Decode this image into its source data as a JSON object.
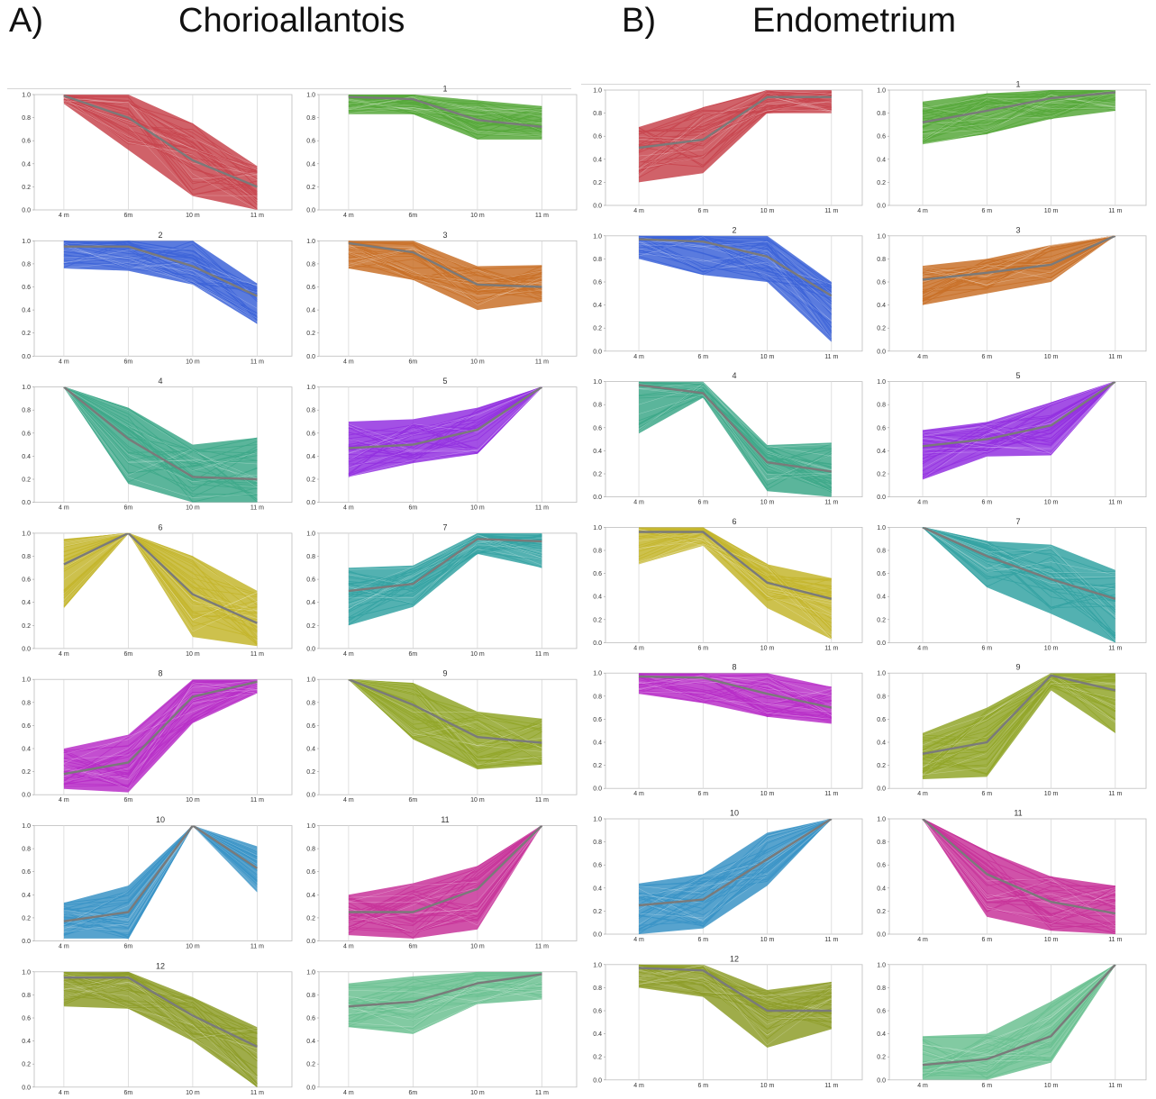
{
  "panels": [
    {
      "letter": "A)",
      "title": "Chorioallantois"
    },
    {
      "letter": "B)",
      "title": "Endometrium"
    }
  ],
  "chart_data": [
    {
      "type": "line",
      "panel": "A) Chorioallantois",
      "x_ticks": [
        "4 m",
        "6m",
        "10 m",
        "11 m"
      ],
      "y_ticks": [
        "0.0",
        "0.2",
        "0.4",
        "0.6",
        "0.8",
        "1.0"
      ],
      "ylim": [
        0,
        1
      ],
      "grid": "vertical",
      "clusters": [
        {
          "label": "",
          "color": "#c8464f",
          "mean": [
            0.99,
            0.8,
            0.43,
            0.2
          ],
          "lower": [
            0.92,
            0.52,
            0.12,
            0.0
          ],
          "upper": [
            1.0,
            1.0,
            0.75,
            0.38
          ]
        },
        {
          "label": "1",
          "color": "#57a83b",
          "mean": [
            0.98,
            0.96,
            0.78,
            0.72
          ],
          "lower": [
            0.83,
            0.83,
            0.61,
            0.61
          ],
          "upper": [
            1.0,
            1.0,
            0.95,
            0.9
          ]
        },
        {
          "label": "2",
          "color": "#3d64d8",
          "mean": [
            0.95,
            0.95,
            0.78,
            0.52
          ],
          "lower": [
            0.76,
            0.74,
            0.62,
            0.28
          ],
          "upper": [
            1.0,
            1.0,
            1.0,
            0.63
          ]
        },
        {
          "label": "3",
          "color": "#c97129",
          "mean": [
            0.98,
            0.9,
            0.62,
            0.6
          ],
          "lower": [
            0.76,
            0.66,
            0.4,
            0.47
          ],
          "upper": [
            1.0,
            1.0,
            0.78,
            0.79
          ]
        },
        {
          "label": "4",
          "color": "#3ea88a",
          "mean": [
            1.0,
            0.55,
            0.22,
            0.2
          ],
          "lower": [
            1.0,
            0.16,
            0.0,
            0.0
          ],
          "upper": [
            1.0,
            0.82,
            0.5,
            0.56
          ]
        },
        {
          "label": "5",
          "color": "#9331e0",
          "mean": [
            0.47,
            0.5,
            0.63,
            1.0
          ],
          "lower": [
            0.22,
            0.34,
            0.42,
            1.0
          ],
          "upper": [
            0.7,
            0.72,
            0.82,
            1.0
          ]
        },
        {
          "label": "6",
          "color": "#c4b62e",
          "mean": [
            0.73,
            1.0,
            0.47,
            0.22
          ],
          "lower": [
            0.35,
            1.0,
            0.1,
            0.02
          ],
          "upper": [
            0.95,
            1.0,
            0.8,
            0.5
          ]
        },
        {
          "label": "7",
          "color": "#35a3a3",
          "mean": [
            0.5,
            0.56,
            0.95,
            0.93
          ],
          "lower": [
            0.2,
            0.36,
            0.82,
            0.7
          ],
          "upper": [
            0.7,
            0.72,
            1.0,
            1.0
          ]
        },
        {
          "label": "8",
          "color": "#b82fc8",
          "mean": [
            0.18,
            0.28,
            0.85,
            0.98
          ],
          "lower": [
            0.05,
            0.02,
            0.62,
            0.88
          ],
          "upper": [
            0.4,
            0.52,
            1.0,
            1.0
          ]
        },
        {
          "label": "9",
          "color": "#92a62a",
          "mean": [
            1.0,
            0.78,
            0.5,
            0.45
          ],
          "lower": [
            1.0,
            0.48,
            0.22,
            0.26
          ],
          "upper": [
            1.0,
            0.97,
            0.72,
            0.66
          ]
        },
        {
          "label": "10",
          "color": "#3a93c6",
          "mean": [
            0.17,
            0.25,
            1.0,
            0.63
          ],
          "lower": [
            0.02,
            0.02,
            1.0,
            0.42
          ],
          "upper": [
            0.33,
            0.48,
            1.0,
            0.82
          ]
        },
        {
          "label": "11",
          "color": "#c8349a",
          "mean": [
            0.25,
            0.25,
            0.45,
            1.0
          ],
          "lower": [
            0.05,
            0.02,
            0.1,
            1.0
          ],
          "upper": [
            0.4,
            0.5,
            0.65,
            1.0
          ]
        },
        {
          "label": "12",
          "color": "#8e9d2a",
          "mean": [
            0.95,
            0.95,
            0.62,
            0.35
          ],
          "lower": [
            0.7,
            0.68,
            0.4,
            0.0
          ],
          "upper": [
            1.0,
            1.0,
            0.78,
            0.52
          ]
        },
        {
          "label": "",
          "color": "#6cc192",
          "mean": [
            0.7,
            0.74,
            0.9,
            0.98
          ],
          "lower": [
            0.52,
            0.46,
            0.72,
            0.76
          ],
          "upper": [
            0.9,
            0.96,
            1.0,
            1.0
          ]
        }
      ]
    },
    {
      "type": "line",
      "panel": "B) Endometrium",
      "x_ticks": [
        "4 m",
        "6 m",
        "10 m",
        "11 m"
      ],
      "y_ticks": [
        "0.0",
        "0.2",
        "0.4",
        "0.6",
        "0.8",
        "1.0"
      ],
      "ylim": [
        0,
        1
      ],
      "grid": "vertical",
      "clusters": [
        {
          "label": "",
          "color": "#c8464f",
          "mean": [
            0.5,
            0.57,
            0.94,
            0.94
          ],
          "lower": [
            0.2,
            0.28,
            0.8,
            0.8
          ],
          "upper": [
            0.68,
            0.85,
            1.0,
            1.0
          ]
        },
        {
          "label": "1",
          "color": "#57a83b",
          "mean": [
            0.72,
            0.82,
            0.93,
            0.98
          ],
          "lower": [
            0.53,
            0.62,
            0.75,
            0.82
          ],
          "upper": [
            0.9,
            0.97,
            1.0,
            1.0
          ]
        },
        {
          "label": "2",
          "color": "#3d64d8",
          "mean": [
            0.97,
            0.95,
            0.82,
            0.48
          ],
          "lower": [
            0.8,
            0.66,
            0.6,
            0.08
          ],
          "upper": [
            1.0,
            1.0,
            1.0,
            0.6
          ]
        },
        {
          "label": "3",
          "color": "#c97129",
          "mean": [
            0.62,
            0.68,
            0.75,
            1.0
          ],
          "lower": [
            0.4,
            0.5,
            0.6,
            1.0
          ],
          "upper": [
            0.74,
            0.8,
            0.92,
            1.0
          ]
        },
        {
          "label": "4",
          "color": "#3ea88a",
          "mean": [
            0.97,
            0.9,
            0.3,
            0.22
          ],
          "lower": [
            0.55,
            0.86,
            0.05,
            0.0
          ],
          "upper": [
            1.0,
            1.0,
            0.45,
            0.47
          ]
        },
        {
          "label": "5",
          "color": "#9331e0",
          "mean": [
            0.44,
            0.5,
            0.62,
            1.0
          ],
          "lower": [
            0.15,
            0.35,
            0.36,
            1.0
          ],
          "upper": [
            0.58,
            0.65,
            0.82,
            1.0
          ]
        },
        {
          "label": "6",
          "color": "#c4b62e",
          "mean": [
            0.96,
            0.96,
            0.52,
            0.38
          ],
          "lower": [
            0.68,
            0.84,
            0.3,
            0.03
          ],
          "upper": [
            1.0,
            1.0,
            0.68,
            0.56
          ]
        },
        {
          "label": "7",
          "color": "#35a3a3",
          "mean": [
            1.0,
            0.75,
            0.55,
            0.38
          ],
          "lower": [
            1.0,
            0.48,
            0.25,
            0.0
          ],
          "upper": [
            1.0,
            0.88,
            0.85,
            0.63
          ]
        },
        {
          "label": "8",
          "color": "#b82fc8",
          "mean": [
            0.97,
            0.96,
            0.82,
            0.7
          ],
          "lower": [
            0.82,
            0.74,
            0.62,
            0.56
          ],
          "upper": [
            1.0,
            1.0,
            1.0,
            0.88
          ]
        },
        {
          "label": "9",
          "color": "#92a62a",
          "mean": [
            0.3,
            0.4,
            0.98,
            0.85
          ],
          "lower": [
            0.08,
            0.1,
            0.85,
            0.48
          ],
          "upper": [
            0.48,
            0.7,
            1.0,
            1.0
          ]
        },
        {
          "label": "10",
          "color": "#3a93c6",
          "mean": [
            0.25,
            0.3,
            0.65,
            1.0
          ],
          "lower": [
            0.0,
            0.05,
            0.42,
            1.0
          ],
          "upper": [
            0.44,
            0.52,
            0.88,
            1.0
          ]
        },
        {
          "label": "11",
          "color": "#c8349a",
          "mean": [
            1.0,
            0.52,
            0.28,
            0.18
          ],
          "lower": [
            1.0,
            0.15,
            0.03,
            0.0
          ],
          "upper": [
            1.0,
            0.72,
            0.5,
            0.42
          ]
        },
        {
          "label": "12",
          "color": "#8e9d2a",
          "mean": [
            0.97,
            0.95,
            0.6,
            0.6
          ],
          "lower": [
            0.8,
            0.72,
            0.28,
            0.44
          ],
          "upper": [
            1.0,
            1.0,
            0.78,
            0.85
          ]
        },
        {
          "label": "",
          "color": "#6cc192",
          "mean": [
            0.13,
            0.18,
            0.38,
            1.0
          ],
          "lower": [
            0.0,
            0.0,
            0.15,
            1.0
          ],
          "upper": [
            0.38,
            0.4,
            0.68,
            1.0
          ]
        }
      ]
    }
  ]
}
